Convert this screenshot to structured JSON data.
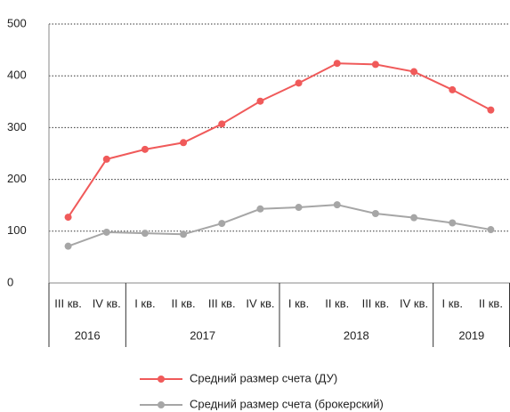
{
  "chart_data": {
    "type": "line",
    "groups": [
      {
        "name": "2016",
        "categories": [
          "III кв.",
          "IV кв."
        ]
      },
      {
        "name": "2017",
        "categories": [
          "I кв.",
          "II кв.",
          "III кв.",
          "IV кв."
        ]
      },
      {
        "name": "2018",
        "categories": [
          "I кв.",
          "II кв.",
          "III кв.",
          "IV кв."
        ]
      },
      {
        "name": "2019",
        "categories": [
          "I кв.",
          "II кв."
        ]
      }
    ],
    "series": [
      {
        "name": "Средний размер счета (ДУ)",
        "color": "#f05a5a",
        "values": [
          127,
          239,
          258,
          271,
          307,
          351,
          386,
          424,
          422,
          408,
          373,
          334
        ]
      },
      {
        "name": "Средний размер счета (брокерский)",
        "color": "#a6a6a6",
        "values": [
          71,
          98,
          96,
          94,
          115,
          143,
          146,
          151,
          134,
          126,
          116,
          103
        ]
      }
    ],
    "ylim": [
      0,
      500
    ],
    "yticks": [
      0,
      100,
      200,
      300,
      400,
      500
    ],
    "grid": true,
    "legend": "bottom"
  }
}
